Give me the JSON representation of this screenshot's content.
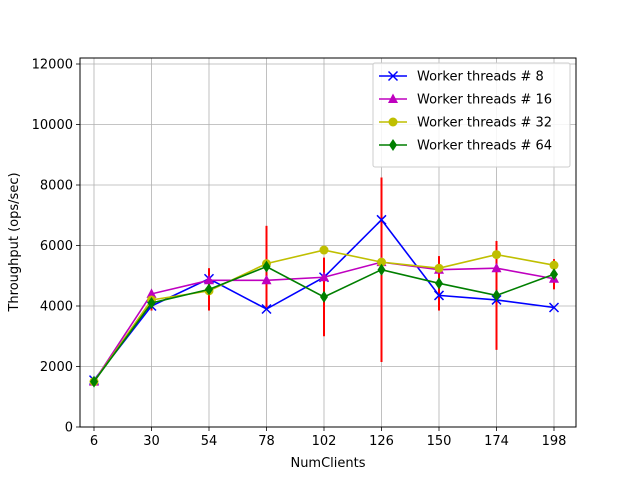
{
  "chart_data": {
    "type": "line",
    "title": "",
    "xlabel": "NumClients",
    "ylabel": "Throughput (ops/sec)",
    "x": [
      6,
      30,
      54,
      78,
      102,
      126,
      150,
      174,
      198
    ],
    "xticks": [
      "6",
      "30",
      "54",
      "78",
      "102",
      "126",
      "150",
      "174",
      "198"
    ],
    "ylim": [
      0,
      12000
    ],
    "yticks": [
      0,
      2000,
      4000,
      6000,
      8000,
      10000,
      12000
    ],
    "grid": true,
    "legend_position": "top-right",
    "error_bar_color": "#ff0000",
    "series": [
      {
        "name": "Worker threads # 8",
        "color": "#0000ff",
        "marker": "x",
        "values": [
          1550,
          4000,
          4900,
          3900,
          4950,
          6850,
          4350,
          4200,
          3950
        ],
        "errors": [
          0,
          0,
          0,
          0,
          0,
          0,
          0,
          0,
          0
        ]
      },
      {
        "name": "Worker threads # 16",
        "color": "#bf00bf",
        "marker": "triangle",
        "values": [
          1500,
          4400,
          4850,
          4850,
          4950,
          5450,
          5200,
          5250,
          4900
        ],
        "errors": [
          0,
          0,
          0,
          0,
          0,
          0,
          0,
          0,
          0
        ]
      },
      {
        "name": "Worker threads # 32",
        "color": "#bfbf00",
        "marker": "circle",
        "values": [
          1500,
          4200,
          4500,
          5400,
          5850,
          5450,
          5250,
          5700,
          5350
        ],
        "errors": [
          0,
          0,
          0,
          0,
          0,
          0,
          0,
          0,
          0
        ]
      },
      {
        "name": "Worker threads # 64",
        "color": "#007f00",
        "marker": "diamond",
        "values": [
          1500,
          4100,
          4550,
          5300,
          4300,
          5200,
          4750,
          4350,
          5050
        ],
        "errors": [
          0,
          250,
          700,
          1350,
          1300,
          3050,
          900,
          1800,
          500
        ]
      }
    ]
  }
}
